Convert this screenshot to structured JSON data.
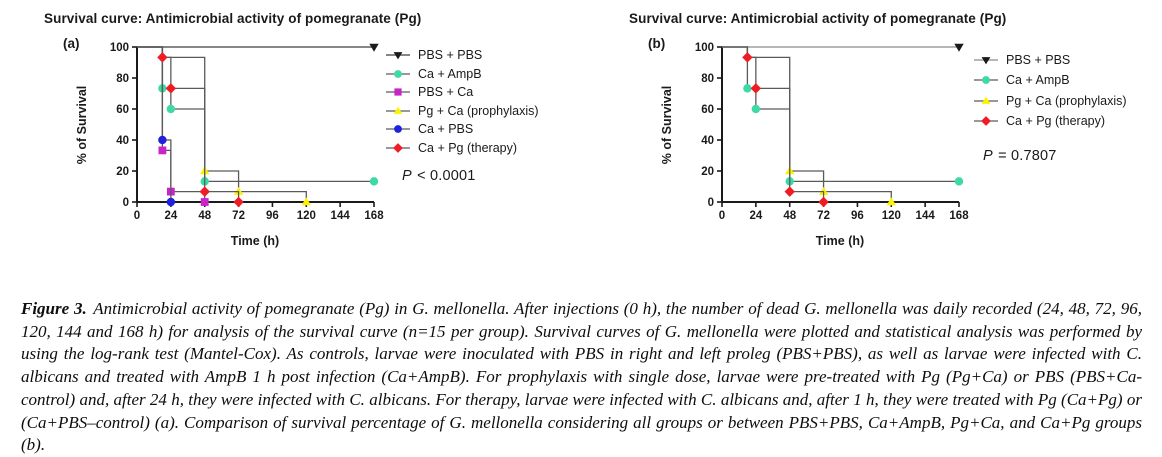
{
  "chart_data": [
    {
      "type": "line",
      "subtype": "kaplan-meier-survival-step",
      "panel": "(a)",
      "title": "Survival curve: Antimicrobial activity of pomegranate (Pg)",
      "xlabel": "Time (h)",
      "ylabel": "% of Survival",
      "xlim": [
        0,
        168
      ],
      "ylim": [
        0,
        100
      ],
      "xticks": [
        0,
        24,
        48,
        72,
        96,
        120,
        144,
        168
      ],
      "yticks": [
        0,
        20,
        40,
        60,
        80,
        100
      ],
      "grid": false,
      "legend_position": "right",
      "annotation": "P < 0.0001",
      "series": [
        {
          "name": "PBS + PBS",
          "marker": "triangle-down",
          "color": "#1a1a1a",
          "line_color": "#3d3d3d",
          "x": [
            0,
            168
          ],
          "y": [
            100,
            100
          ],
          "events": [
            [
              168,
              100
            ]
          ]
        },
        {
          "name": "Ca + AmpB",
          "marker": "circle",
          "color": "#3fd9a6",
          "line_color": "#5a5a5a",
          "x": [
            0,
            18,
            24,
            48,
            168
          ],
          "y": [
            100,
            73.3,
            60,
            13.3,
            13.3
          ],
          "events": [
            [
              18,
              73.3
            ],
            [
              24,
              60
            ],
            [
              48,
              13.3
            ],
            [
              168,
              13.3
            ]
          ]
        },
        {
          "name": "PBS + Ca",
          "marker": "square",
          "color": "#c924c9",
          "line_color": "#5a5a5a",
          "x": [
            0,
            18,
            24,
            48
          ],
          "y": [
            100,
            33.3,
            6.7,
            0
          ],
          "events": [
            [
              18,
              33.3
            ],
            [
              24,
              6.7
            ],
            [
              48,
              0
            ]
          ]
        },
        {
          "name": "Pg + Ca (prophylaxis)",
          "marker": "triangle-up",
          "color": "#fff200",
          "line_color": "#5a5a5a",
          "x": [
            0,
            18,
            48,
            72,
            120
          ],
          "y": [
            100,
            93.3,
            20,
            6.7,
            0
          ],
          "events": [
            [
              48,
              20
            ],
            [
              72,
              6.7
            ],
            [
              120,
              0
            ]
          ]
        },
        {
          "name": "Ca + PBS",
          "marker": "circle",
          "color": "#2121dd",
          "line_color": "#5a5a5a",
          "x": [
            0,
            18,
            24
          ],
          "y": [
            100,
            40,
            0
          ],
          "events": [
            [
              18,
              40
            ],
            [
              24,
              0
            ]
          ]
        },
        {
          "name": "Ca + Pg (therapy)",
          "marker": "diamond",
          "color": "#ef1c24",
          "line_color": "#5a5a5a",
          "x": [
            0,
            18,
            24,
            48,
            72
          ],
          "y": [
            100,
            93.3,
            73.3,
            6.7,
            0
          ],
          "events": [
            [
              18,
              93.3
            ],
            [
              24,
              73.3
            ],
            [
              48,
              6.7
            ],
            [
              72,
              0
            ]
          ]
        }
      ]
    },
    {
      "type": "line",
      "subtype": "kaplan-meier-survival-step",
      "panel": "(b)",
      "title": "Survival curve: Antimicrobial activity of pomegranate (Pg)",
      "xlabel": "Time (h)",
      "ylabel": "% of Survival",
      "xlim": [
        0,
        168
      ],
      "ylim": [
        0,
        100
      ],
      "xticks": [
        0,
        24,
        48,
        72,
        96,
        120,
        144,
        168
      ],
      "yticks": [
        0,
        20,
        40,
        60,
        80,
        100
      ],
      "grid": false,
      "legend_position": "right",
      "annotation": "P = 0.7807",
      "series": [
        {
          "name": "PBS + PBS",
          "marker": "triangle-down",
          "color": "#1a1a1a",
          "line_color": "#8c8c8c",
          "x": [
            0,
            168
          ],
          "y": [
            100,
            100
          ],
          "events": [
            [
              168,
              100
            ]
          ]
        },
        {
          "name": "Ca + AmpB",
          "marker": "circle",
          "color": "#3fd9a6",
          "line_color": "#5a5a5a",
          "x": [
            0,
            18,
            24,
            48,
            168
          ],
          "y": [
            100,
            73.3,
            60,
            13.3,
            13.3
          ],
          "events": [
            [
              18,
              73.3
            ],
            [
              24,
              60
            ],
            [
              48,
              13.3
            ],
            [
              168,
              13.3
            ]
          ]
        },
        {
          "name": "Pg + Ca (prophylaxis)",
          "marker": "triangle-up",
          "color": "#fff200",
          "line_color": "#5a5a5a",
          "x": [
            0,
            18,
            48,
            72,
            120
          ],
          "y": [
            100,
            93.3,
            20,
            6.7,
            0
          ],
          "events": [
            [
              48,
              20
            ],
            [
              72,
              6.7
            ],
            [
              120,
              0
            ]
          ]
        },
        {
          "name": "Ca + Pg (therapy)",
          "marker": "diamond",
          "color": "#ef1c24",
          "line_color": "#5a5a5a",
          "x": [
            0,
            18,
            24,
            48,
            72
          ],
          "y": [
            100,
            93.3,
            73.3,
            6.7,
            0
          ],
          "events": [
            [
              18,
              93.3
            ],
            [
              24,
              73.3
            ],
            [
              48,
              6.7
            ],
            [
              72,
              0
            ]
          ]
        }
      ]
    }
  ],
  "caption": {
    "label": "Figure 3.",
    "text": "Antimicrobial activity of pomegranate (Pg) in G. mellonella. After injections (0 h), the number of dead G. mellonella was daily recorded (24, 48, 72, 96, 120, 144 and 168 h) for analysis of the survival curve (n=15 per group). Survival curves of G. mellonella were plotted and statistical analysis was performed by using the log-rank test (Mantel-Cox). As controls, larvae were inoculated with PBS in right and left proleg (PBS+PBS), as well as larvae were infected with C. albicans and treated with AmpB 1 h post infection (Ca+AmpB). For prophylaxis with single dose, larvae were pre-treated with Pg (Pg+Ca) or PBS (PBS+Ca-control) and, after 24 h, they were infected with C. albicans. For therapy, larvae were infected with C. albicans and, after 1 h, they were treated with Pg (Ca+Pg) or (Ca+PBS–control) (a). Comparison of survival percentage of G. mellonella considering all groups or between PBS+PBS, Ca+AmpB, Pg+Ca, and Ca+Pg groups (b)."
  }
}
